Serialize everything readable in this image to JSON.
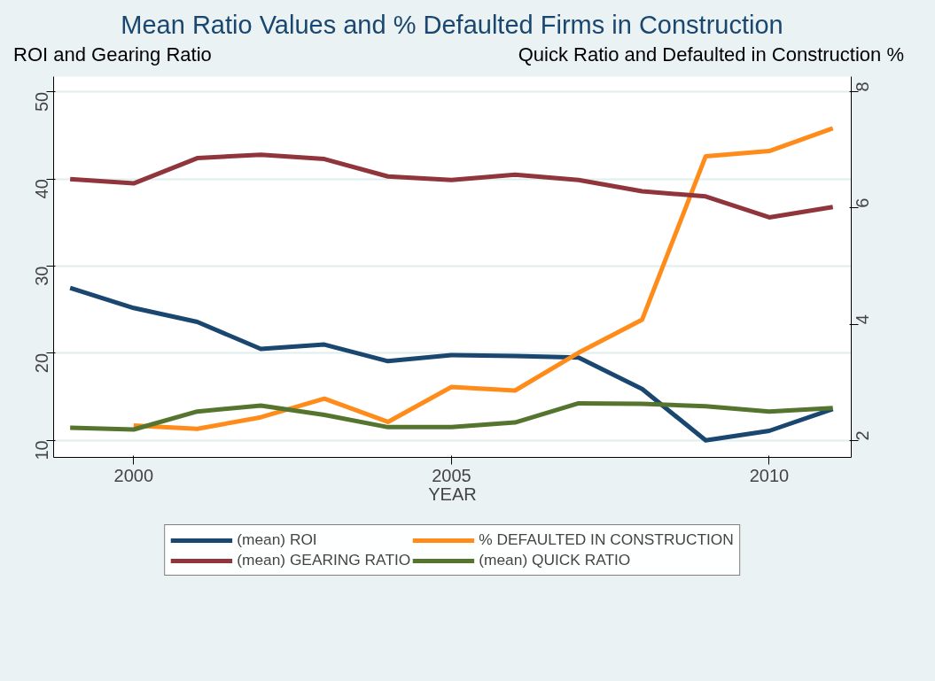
{
  "chart_data": {
    "type": "line",
    "title": "Mean Ratio Values and % Defaulted Firms in Construction",
    "xlabel": "YEAR",
    "ylabel": "ROI and Gearing Ratio",
    "y2label": "Quick Ratio and Defaulted in Construction %",
    "x": [
      1999,
      2000,
      2001,
      2002,
      2003,
      2004,
      2005,
      2006,
      2007,
      2008,
      2009,
      2010,
      2011
    ],
    "series": [
      {
        "name": "(mean) ROI",
        "color": "#1a476f",
        "values": [
          27.5,
          25.2,
          23.6,
          20.5,
          21.0,
          19.1,
          19.8,
          19.7,
          19.5,
          15.9,
          10.0,
          11.1,
          13.6
        ]
      },
      {
        "name": "% DEFAULTED IN CONSTRUCTION",
        "color": "#ff8c1a",
        "axis": "y2",
        "values": [
          null,
          2.26,
          2.2,
          2.4,
          2.72,
          2.32,
          2.92,
          2.86,
          3.51,
          4.08,
          6.89,
          6.98,
          7.37
        ]
      },
      {
        "name": "(mean) GEARING RATIO",
        "color": "#90353b",
        "values": [
          40.0,
          39.5,
          42.4,
          42.8,
          42.3,
          40.3,
          39.9,
          40.5,
          39.9,
          38.6,
          38.0,
          35.6,
          36.8
        ]
      },
      {
        "name": "(mean) QUICK RATIO",
        "color": "#55752f",
        "axis": "y2",
        "values": [
          2.22,
          2.19,
          2.5,
          2.6,
          2.44,
          2.23,
          2.23,
          2.31,
          2.64,
          2.63,
          2.59,
          2.5,
          2.56
        ]
      }
    ],
    "xlim": [
      1998.74,
      2011.29
    ],
    "xticks": [
      2000,
      2005,
      2010
    ],
    "ylim": [
      8.05,
      51.76
    ],
    "yticks": [
      10,
      20,
      30,
      40,
      50
    ],
    "y2lim": [
      1.71,
      8.26
    ],
    "y2ticks": [
      2,
      4,
      6,
      8
    ],
    "grid": "y",
    "legend": "bottom",
    "line_style": "solid",
    "marker": "none"
  }
}
